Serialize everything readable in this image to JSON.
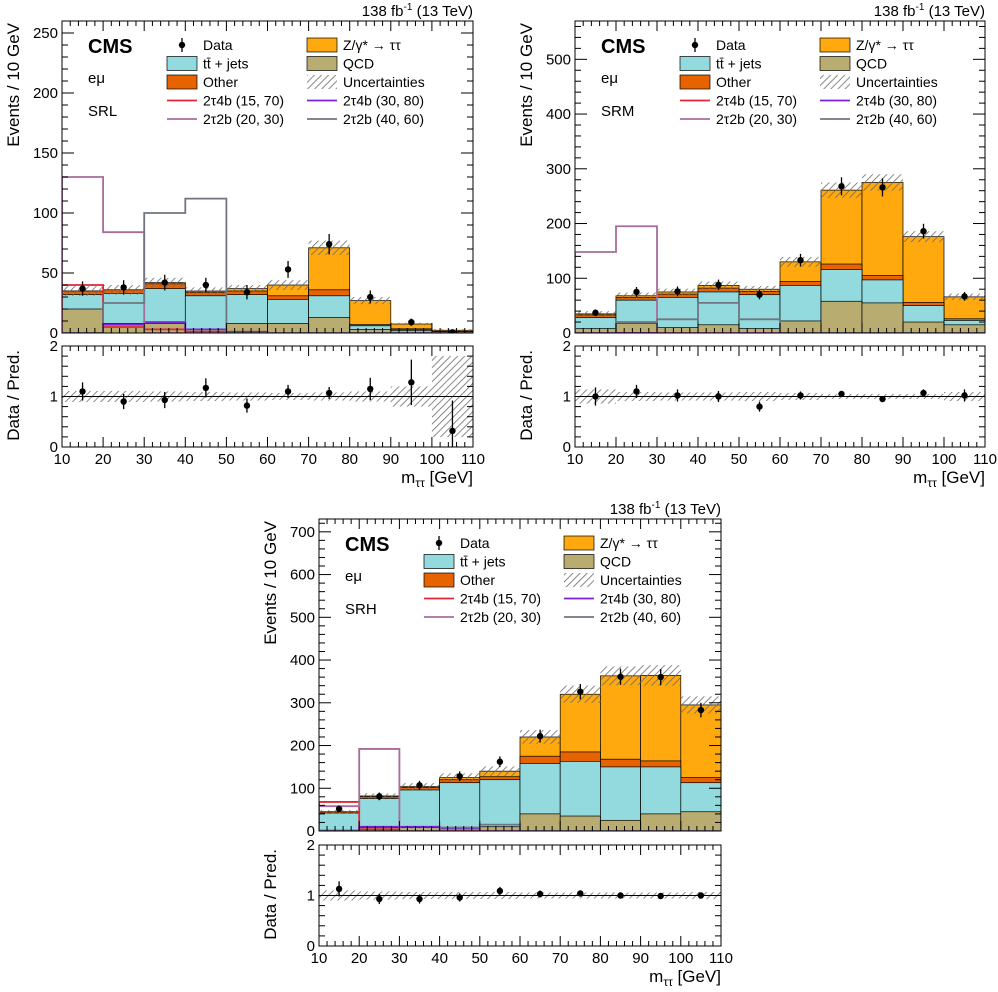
{
  "lumi_label": "138 fb",
  "lumi_sup": "-1",
  "lumi_suffix": " (13 TeV)",
  "experiment": "CMS",
  "channel": "eμ",
  "xlabel": "m",
  "xlabel_sub": "ττ",
  "xlabel_unit": " [GeV]",
  "ylabel_top": "Events / 10 GeV",
  "ylabel_ratio": "Data / Pred.",
  "legend": [
    {
      "key": "data",
      "label": "Data",
      "kind": "marker"
    },
    {
      "key": "ztt",
      "label": "Z/γ* → ττ",
      "kind": "box",
      "color": "#ffa90e"
    },
    {
      "key": "tt",
      "label": "tt̄ + jets",
      "kind": "box",
      "color": "#92dadd"
    },
    {
      "key": "qcd",
      "label": "QCD",
      "kind": "box",
      "color": "#b9ac70"
    },
    {
      "key": "other",
      "label": "Other",
      "kind": "box",
      "color": "#e76300"
    },
    {
      "key": "unc",
      "label": "Uncertainties",
      "kind": "hatch"
    },
    {
      "key": "s1",
      "label": "2τ4b (15, 70)",
      "kind": "line",
      "color": "#e42536"
    },
    {
      "key": "s2",
      "label": "2τ4b (30, 80)",
      "kind": "line",
      "color": "#7a21dd"
    },
    {
      "key": "s3",
      "label": "2τ2b (20, 30)",
      "kind": "line",
      "color": "#a96b99"
    },
    {
      "key": "s4",
      "label": "2τ2b (40, 60)",
      "kind": "line",
      "color": "#717581"
    }
  ],
  "colors": {
    "ztt": "#ffa90e",
    "tt": "#92dadd",
    "qcd": "#b9ac70",
    "other": "#e76300",
    "s1": "#e42536",
    "s2": "#7a21dd",
    "s3": "#a96b99",
    "s4": "#717581"
  },
  "chart_data": [
    {
      "type": "bar",
      "region": "SRL",
      "bin_edges": [
        10,
        20,
        30,
        40,
        50,
        60,
        70,
        80,
        90,
        100,
        110
      ],
      "ylim": [
        0,
        260
      ],
      "yticks": [
        0,
        50,
        100,
        150,
        200,
        250
      ],
      "xticks": [
        10,
        20,
        30,
        40,
        50,
        60,
        70,
        80,
        90,
        100,
        110
      ],
      "ratio_ylim": [
        0,
        2
      ],
      "ratio_yticks": [
        0,
        1,
        2
      ],
      "stack": {
        "qcd": [
          20,
          8,
          8,
          3,
          8,
          8,
          13,
          3,
          2,
          0.5
        ],
        "tt": [
          12,
          25,
          29,
          28,
          24,
          20,
          18,
          3,
          1,
          0.5
        ],
        "other": [
          3,
          3,
          4,
          3,
          3,
          3,
          5,
          1,
          0.5,
          0.3
        ],
        "ztt": [
          0,
          0,
          1,
          1,
          2,
          9,
          35,
          20,
          4,
          1
        ]
      },
      "uncertainty": [
        4,
        4,
        4,
        3,
        3,
        4,
        6,
        3,
        1,
        1
      ],
      "data": [
        37,
        38,
        42,
        40,
        34,
        53,
        74,
        30,
        9,
        0.6
      ],
      "data_err": [
        6,
        6,
        6.5,
        6,
        6,
        7,
        8.5,
        5.5,
        3,
        0.8
      ],
      "ratio": [
        1.1,
        0.9,
        0.93,
        1.17,
        0.82,
        1.1,
        1.07,
        1.15,
        1.28,
        0.32
      ],
      "ratio_err": [
        0.18,
        0.15,
        0.16,
        0.19,
        0.14,
        0.13,
        0.12,
        0.22,
        0.45,
        0.6
      ],
      "ratio_unc": [
        0.11,
        0.11,
        0.1,
        0.09,
        0.08,
        0.07,
        0.08,
        0.1,
        0.2,
        0.8
      ],
      "signals": {
        "s1": [
          40,
          5,
          3,
          1,
          0,
          0,
          0,
          0,
          0,
          0
        ],
        "s2": [
          0,
          7,
          9,
          3,
          1,
          0,
          0,
          0,
          0,
          0
        ],
        "s3": [
          130,
          84,
          0,
          0,
          0,
          0,
          0,
          0,
          0,
          0
        ],
        "s4": [
          0,
          25,
          100,
          112,
          0,
          0,
          0,
          0,
          0,
          0
        ]
      }
    },
    {
      "type": "bar",
      "region": "SRM",
      "bin_edges": [
        10,
        20,
        30,
        40,
        50,
        60,
        70,
        80,
        90,
        100,
        110
      ],
      "ylim": [
        0,
        570
      ],
      "yticks": [
        0,
        100,
        200,
        300,
        400,
        500
      ],
      "xticks": [
        10,
        20,
        30,
        40,
        50,
        60,
        70,
        80,
        90,
        100,
        110
      ],
      "ratio_ylim": [
        0,
        2
      ],
      "ratio_yticks": [
        0,
        1,
        2
      ],
      "stack": {
        "qcd": [
          8,
          18,
          10,
          15,
          8,
          22,
          58,
          55,
          20,
          15
        ],
        "tt": [
          20,
          42,
          55,
          60,
          62,
          65,
          58,
          42,
          30,
          8
        ],
        "other": [
          5,
          5,
          6,
          7,
          6,
          7,
          10,
          8,
          6,
          3
        ],
        "ztt": [
          2,
          3,
          4,
          5,
          4,
          36,
          135,
          170,
          120,
          40
        ]
      },
      "uncertainty": [
        5,
        6,
        6,
        7,
        6,
        9,
        14,
        15,
        10,
        6
      ],
      "data": [
        37,
        75,
        76,
        88,
        70,
        133,
        268,
        266,
        186,
        67
      ],
      "data_err": [
        6,
        9,
        9,
        9.5,
        8.5,
        11.5,
        16.5,
        16.5,
        13.5,
        8
      ],
      "ratio": [
        1.0,
        1.1,
        1.02,
        1.0,
        0.8,
        1.02,
        1.05,
        0.95,
        1.07,
        1.02
      ],
      "ratio_err": [
        0.18,
        0.13,
        0.12,
        0.11,
        0.1,
        0.08,
        0.06,
        0.06,
        0.07,
        0.12
      ],
      "ratio_unc": [
        0.14,
        0.09,
        0.08,
        0.08,
        0.09,
        0.07,
        0.05,
        0.05,
        0.05,
        0.09
      ],
      "signals": {
        "s1": [
          0,
          0,
          0,
          0,
          0,
          0,
          0,
          0,
          0,
          0
        ],
        "s2": [
          0,
          0,
          0,
          0,
          0,
          0,
          0,
          0,
          0,
          0
        ],
        "s3": [
          148,
          195,
          0,
          0,
          0,
          0,
          0,
          0,
          0,
          0
        ],
        "s4": [
          0,
          20,
          25,
          55,
          25,
          0,
          0,
          0,
          0,
          0
        ]
      }
    },
    {
      "type": "bar",
      "region": "SRH",
      "bin_edges": [
        10,
        20,
        30,
        40,
        50,
        60,
        70,
        80,
        90,
        100,
        110
      ],
      "ylim": [
        0,
        730
      ],
      "yticks": [
        0,
        100,
        200,
        300,
        400,
        500,
        600,
        700
      ],
      "xticks": [
        10,
        20,
        30,
        40,
        50,
        60,
        70,
        80,
        90,
        100,
        110
      ],
      "ratio_ylim": [
        0,
        2
      ],
      "ratio_yticks": [
        0,
        1,
        2
      ],
      "stack": {
        "qcd": [
          2,
          8,
          8,
          8,
          10,
          40,
          35,
          25,
          40,
          45
        ],
        "tt": [
          40,
          68,
          88,
          105,
          110,
          118,
          128,
          125,
          110,
          68
        ],
        "other": [
          3,
          4,
          6,
          7,
          7,
          17,
          22,
          18,
          14,
          12
        ],
        "ztt": [
          0,
          2,
          2,
          5,
          13,
          45,
          135,
          195,
          200,
          170
        ]
      },
      "uncertainty": [
        4,
        6,
        8,
        10,
        11,
        16,
        20,
        22,
        24,
        20
      ],
      "data": [
        52,
        81,
        107,
        128,
        162,
        222,
        326,
        361,
        360,
        283
      ],
      "data_err": [
        7,
        9,
        10.5,
        11.5,
        12.5,
        15,
        18,
        19,
        19,
        17
      ],
      "ratio": [
        1.13,
        0.93,
        0.93,
        0.96,
        1.09,
        1.03,
        1.04,
        1.0,
        0.99,
        1.0
      ],
      "ratio_err": [
        0.15,
        0.1,
        0.09,
        0.08,
        0.08,
        0.07,
        0.05,
        0.05,
        0.05,
        0.06
      ],
      "ratio_unc": [
        0.1,
        0.08,
        0.07,
        0.07,
        0.07,
        0.06,
        0.06,
        0.06,
        0.06,
        0.07
      ],
      "signals": {
        "s1": [
          68,
          4,
          0,
          0,
          0,
          0,
          0,
          0,
          0,
          0
        ],
        "s2": [
          0,
          10,
          10,
          6,
          0,
          0,
          0,
          0,
          0,
          0
        ],
        "s3": [
          58,
          192,
          0,
          0,
          0,
          0,
          0,
          0,
          0,
          0
        ],
        "s4": [
          0,
          0,
          0,
          8,
          15,
          0,
          0,
          0,
          0,
          0
        ]
      }
    }
  ]
}
